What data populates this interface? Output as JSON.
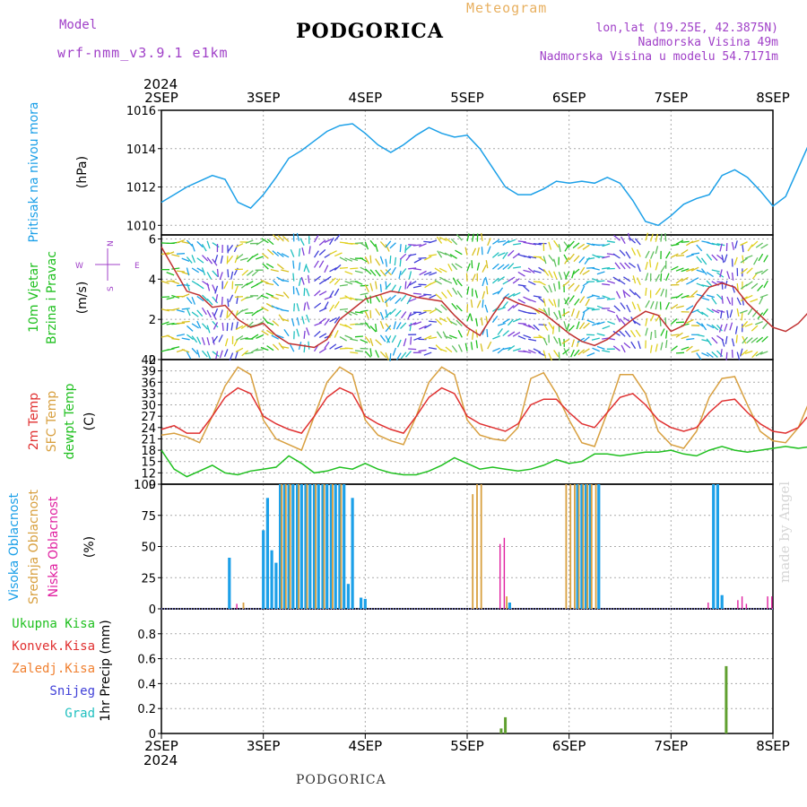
{
  "header": {
    "model_label": "Model",
    "model_name": "wrf-nmm_v3.9.1 e1km",
    "title": "PODGORICA",
    "meteogram_label": "Meteogram",
    "location_lines": [
      "lon,lat (19.25E, 42.3875N)",
      "Nadmorska Visina 49m",
      "Nadmorska Visina u modelu 54.7171m"
    ]
  },
  "footer": {
    "title": "PODGORICA",
    "made_by": "made by Angel"
  },
  "time_axis": {
    "year_top": "2024",
    "year_bottom": "2024",
    "ticks": [
      "2SEP",
      "3SEP",
      "4SEP",
      "5SEP",
      "6SEP",
      "7SEP",
      "8SEP"
    ]
  },
  "colors": {
    "pressure": "#1ca0e8",
    "temp2m": "#e03030",
    "sfc_temp": "#d8a040",
    "dewpt": "#20c020",
    "wind_label": "#20c020",
    "high_cloud": "#1ca0e8",
    "mid_cloud": "#d8a040",
    "low_cloud": "#e020a0",
    "precip_total": "#20c020",
    "precip_conv": "#e03030",
    "precip_frozen": "#f08030",
    "precip_snow": "#4040d8",
    "precip_hail": "#20c0c0"
  },
  "chart_data": [
    {
      "type": "line",
      "panel": "pressure",
      "ylabel_lines": [
        "Pritisak na nivou mora",
        "(hPa)"
      ],
      "ylim": [
        1009.5,
        1016
      ],
      "yticks": [
        "1010",
        "1012",
        "1014",
        "1016"
      ],
      "series": [
        {
          "values_every_3h_from_2SEP00": [
            1011.2,
            1011.6,
            1012.0,
            1012.3,
            1012.6,
            1012.4,
            1011.2,
            1010.9,
            1011.6,
            1012.5,
            1013.5,
            1013.9,
            1014.4,
            1014.9,
            1015.2,
            1015.3,
            1014.8,
            1014.2,
            1013.8,
            1014.2,
            1014.7,
            1015.1,
            1014.8,
            1014.6,
            1014.7,
            1014.0,
            1013.0,
            1012.0,
            1011.6,
            1011.6,
            1011.9,
            1012.3,
            1012.2,
            1012.3,
            1012.2,
            1012.5,
            1012.2,
            1011.3,
            1010.2,
            1010.0,
            1010.5,
            1011.1,
            1011.4,
            1011.6,
            1012.6,
            1012.9,
            1012.5,
            1011.8,
            1011.0,
            1011.5,
            1013.0,
            1014.5,
            1014.6,
            1015.2,
            1015.5,
            1015.3,
            1014.6,
            1013.8,
            1014.0,
            1014.8,
            1014.9,
            1014.6,
            1014.1
          ]
        }
      ]
    },
    {
      "type": "line",
      "panel": "wind",
      "ylabel_lines": [
        "10m Vjetar",
        "Brzina i Pravac",
        "(m/s)"
      ],
      "compass": [
        "N",
        "W",
        "E",
        "S"
      ],
      "ylim": [
        0,
        6.2
      ],
      "yticks": [
        "0",
        "2",
        "4",
        "6"
      ],
      "series": [
        {
          "values_every_3h_from_2SEP00": [
            5.6,
            4.5,
            3.4,
            3.2,
            2.6,
            2.7,
            2.0,
            1.6,
            1.8,
            1.2,
            0.8,
            0.7,
            0.6,
            1.0,
            2.0,
            2.5,
            3.0,
            3.2,
            3.4,
            3.3,
            3.1,
            3.0,
            2.9,
            2.2,
            1.6,
            1.2,
            2.2,
            3.1,
            2.8,
            2.6,
            2.3,
            1.8,
            1.3,
            0.9,
            0.7,
            1.0,
            1.5,
            2.0,
            2.4,
            2.2,
            1.4,
            1.7,
            2.8,
            3.6,
            3.8,
            3.6,
            2.8,
            2.2,
            1.6,
            1.4,
            1.8,
            2.5,
            3.4,
            4.4,
            4.6,
            4.2,
            3.5,
            2.6,
            1.6,
            1.2,
            1.6,
            1.8,
            2.0
          ]
        }
      ]
    },
    {
      "type": "line",
      "panel": "temperature",
      "ylabel_lines": [
        "2m Temp",
        "SFC Temp",
        "dewpt Temp",
        "(C)"
      ],
      "ylim": [
        9,
        42
      ],
      "yticks": [
        "9",
        "12",
        "15",
        "18",
        "21",
        "24",
        "27",
        "30",
        "33",
        "36",
        "39",
        "42"
      ],
      "series": [
        {
          "name": "2m Temp",
          "values_every_3h_from_2SEP00": [
            23.5,
            24.5,
            22.5,
            22.5,
            27,
            32,
            34.5,
            33,
            27,
            25,
            23.5,
            22.5,
            27,
            32,
            34.5,
            33,
            27,
            25,
            23.5,
            22.5,
            27,
            32,
            34.5,
            33,
            27,
            25,
            24,
            23,
            25,
            30,
            31.5,
            31.5,
            28,
            25,
            24,
            28,
            32,
            33,
            30,
            26,
            24,
            23,
            24,
            28,
            31,
            31.5,
            28,
            25,
            23,
            22.5,
            24,
            28,
            31,
            31.5,
            29,
            26,
            24,
            23,
            24,
            27,
            28,
            25.5,
            24
          ]
        },
        {
          "name": "SFC Temp",
          "values_every_3h_from_2SEP00": [
            22,
            22.5,
            21.5,
            20,
            27,
            35,
            40,
            38,
            26,
            21,
            19.5,
            18,
            27,
            36,
            40,
            38,
            26,
            22,
            20.5,
            19.5,
            27,
            36,
            40,
            38,
            26,
            22,
            21,
            20.5,
            24,
            37,
            38.5,
            33,
            26,
            20,
            19,
            28,
            38,
            38,
            33,
            23,
            19.5,
            18.5,
            23,
            32,
            37,
            37.5,
            30,
            23,
            20.5,
            20,
            24,
            32,
            37,
            37.5,
            31,
            24,
            20.5,
            20.5,
            23.5,
            33,
            35,
            24,
            21
          ]
        },
        {
          "name": "dewpt Temp",
          "values_every_3h_from_2SEP00": [
            18,
            13,
            11,
            12.5,
            14,
            12,
            11.5,
            12.5,
            13,
            13.5,
            16.5,
            14.5,
            12,
            12.5,
            13.5,
            13,
            14.5,
            13,
            12,
            11.5,
            11.5,
            12.5,
            14,
            16,
            14.5,
            13,
            13.5,
            13,
            12.5,
            13,
            14,
            15.5,
            14.5,
            15,
            17,
            17,
            16.5,
            17,
            17.5,
            17.5,
            18,
            17,
            16.5,
            18,
            19,
            18,
            17.5,
            18,
            18.5,
            19,
            18.5,
            19,
            19.5,
            20.5,
            20,
            19,
            19.5,
            20,
            20.5,
            19,
            18,
            16.5,
            15
          ]
        }
      ]
    },
    {
      "type": "bar",
      "panel": "clouds",
      "ylabel_lines": [
        "Visoka Oblacnost",
        "Srednja Oblacnost",
        "Niska Oblacnost",
        "(%)"
      ],
      "ylim": [
        0,
        100
      ],
      "yticks": [
        "0",
        "25",
        "50",
        "75",
        "100"
      ],
      "series": [
        {
          "name": "Visoka Oblacnost",
          "points_hours_from_2SEP00": [
            [
              16,
              41
            ],
            [
              24,
              63
            ],
            [
              25,
              89
            ],
            [
              26,
              47
            ],
            [
              27,
              37
            ],
            [
              28,
              100
            ],
            [
              29,
              100
            ],
            [
              30,
              100
            ],
            [
              31,
              100
            ],
            [
              32,
              100
            ],
            [
              33,
              100
            ],
            [
              34,
              100
            ],
            [
              35,
              100
            ],
            [
              36,
              100
            ],
            [
              37,
              100
            ],
            [
              38,
              100
            ],
            [
              39,
              100
            ],
            [
              40,
              100
            ],
            [
              41,
              100
            ],
            [
              42,
              100
            ],
            [
              43,
              100
            ],
            [
              44,
              20
            ],
            [
              45,
              89
            ],
            [
              47,
              9
            ],
            [
              48,
              8
            ],
            [
              82,
              5
            ],
            [
              98,
              100
            ],
            [
              99,
              100
            ],
            [
              100,
              100
            ],
            [
              101,
              100
            ],
            [
              103,
              100
            ],
            [
              130,
              100
            ],
            [
              131,
              100
            ],
            [
              132,
              11
            ],
            [
              158,
              100
            ],
            [
              159,
              44
            ],
            [
              160,
              41
            ]
          ]
        },
        {
          "name": "Srednja Oblacnost",
          "points_hours_from_2SEP00": [
            [
              19,
              5
            ],
            [
              28,
              100
            ],
            [
              29,
              100
            ],
            [
              30,
              100
            ],
            [
              32,
              100
            ],
            [
              34,
              100
            ],
            [
              36,
              100
            ],
            [
              38,
              100
            ],
            [
              40,
              100
            ],
            [
              42,
              100
            ],
            [
              73,
              92
            ],
            [
              74,
              100
            ],
            [
              75,
              100
            ],
            [
              81,
              10
            ],
            [
              95,
              100
            ],
            [
              96,
              100
            ],
            [
              97,
              100
            ],
            [
              98,
              100
            ],
            [
              99,
              100
            ],
            [
              100,
              100
            ],
            [
              101,
              100
            ],
            [
              102,
              100
            ]
          ]
        },
        {
          "name": "Niska Oblacnost",
          "points_hours_from_2SEP00": [
            [
              18,
              4
            ],
            [
              80,
              52
            ],
            [
              81,
              57
            ],
            [
              129,
              5
            ],
            [
              136,
              7
            ],
            [
              137,
              10
            ],
            [
              138,
              4
            ],
            [
              143,
              10
            ],
            [
              144,
              10
            ],
            [
              154,
              5
            ],
            [
              161,
              20
            ]
          ]
        }
      ]
    },
    {
      "type": "bar",
      "panel": "precip",
      "ylabel_lines": [
        "1hr Precip (mm)"
      ],
      "legend": [
        "Ukupna Kisa",
        "Konvek.Kisa",
        "Zaledj.Kisa",
        "Snijeg",
        "Grad"
      ],
      "ylim": [
        0,
        1
      ],
      "yticks": [
        "0",
        "0.2",
        "0.4",
        "0.6",
        "0.8"
      ],
      "series": [
        {
          "name": "Ukupna Kisa",
          "points_hours_from_2SEP00": [
            [
              80,
              0.04
            ],
            [
              81,
              0.13
            ],
            [
              133,
              0.54
            ]
          ]
        }
      ]
    }
  ]
}
